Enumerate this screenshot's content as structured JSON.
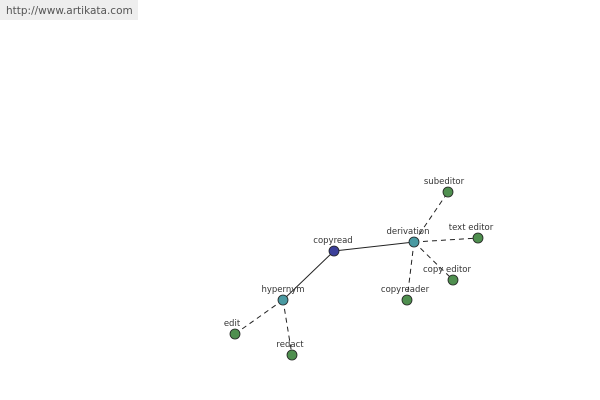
{
  "header": {
    "url": "http://www.artikata.com"
  },
  "nodes": [
    {
      "label": "copyread"
    },
    {
      "label": "derivation"
    },
    {
      "label": "hypernym"
    },
    {
      "label": "subeditor"
    },
    {
      "label": "text editor"
    },
    {
      "label": "copy editor"
    },
    {
      "label": "copyreader"
    },
    {
      "label": "edit"
    },
    {
      "label": "redact"
    }
  ]
}
